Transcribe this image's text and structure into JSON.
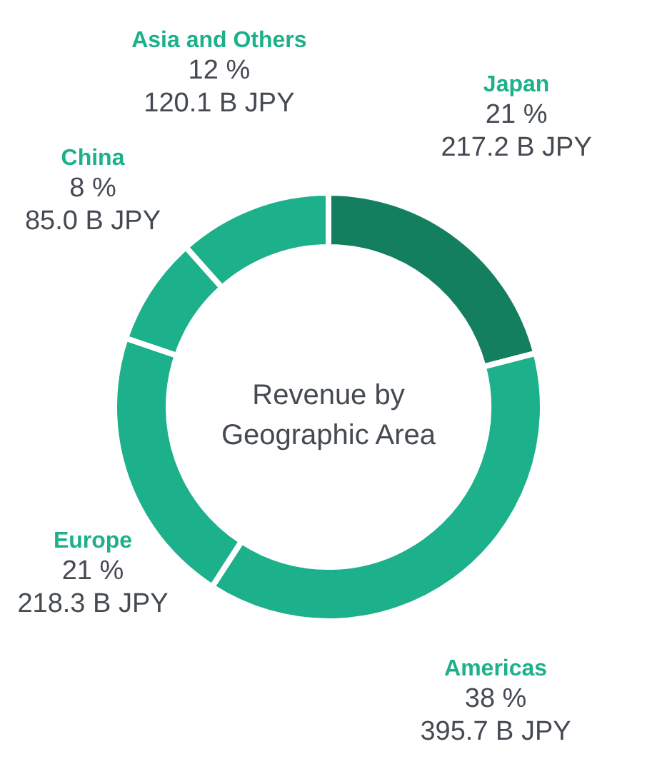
{
  "chart_data": {
    "type": "donut",
    "title": "Revenue by\nGeographic Area",
    "categories": [
      "Japan",
      "Americas",
      "Europe",
      "China",
      "Asia and Others"
    ],
    "values": [
      217.2,
      395.7,
      218.3,
      85.0,
      120.1
    ],
    "colors": [
      "#137f5f",
      "#1cb08b",
      "#1cb08b",
      "#1cb08b",
      "#1cb08b"
    ],
    "value_labels": [
      "21 %\n217.2 B JPY",
      "38 %\n395.7 B JPY",
      "21 %\n218.3 B JPY",
      "8 %\n85.0 B JPY",
      "12 %\n120.1 B JPY"
    ]
  }
}
